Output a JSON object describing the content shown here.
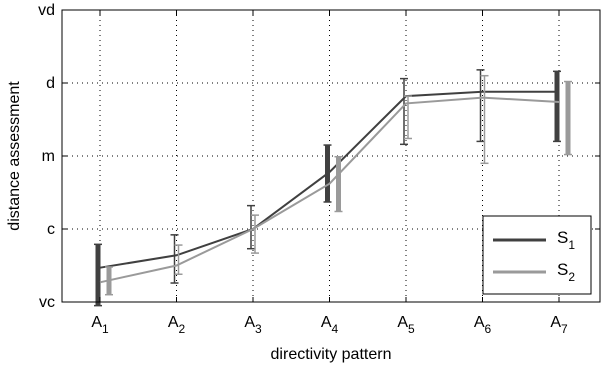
{
  "chart_data": {
    "type": "line",
    "title": "",
    "xlabel": "directivity pattern",
    "ylabel": "distance assessment",
    "categories": [
      {
        "base": "A",
        "sub": "1"
      },
      {
        "base": "A",
        "sub": "2"
      },
      {
        "base": "A",
        "sub": "3"
      },
      {
        "base": "A",
        "sub": "4"
      },
      {
        "base": "A",
        "sub": "5"
      },
      {
        "base": "A",
        "sub": "6"
      },
      {
        "base": "A",
        "sub": "7"
      }
    ],
    "y_ticks": [
      {
        "label": "vc",
        "value": 1
      },
      {
        "label": "c",
        "value": 2
      },
      {
        "label": "m",
        "value": 3
      },
      {
        "label": "d",
        "value": 4
      },
      {
        "label": "vd",
        "value": 5
      }
    ],
    "ylim": [
      1,
      5
    ],
    "grid": true,
    "legend_position": "bottom-right",
    "series": [
      {
        "name": "S",
        "name_sub": "1",
        "color": "#404040",
        "values": [
          1.47,
          1.64,
          2.0,
          2.78,
          3.82,
          3.88,
          3.88
        ],
        "error_low": [
          0.95,
          1.26,
          1.73,
          2.37,
          3.16,
          3.2,
          3.2
        ],
        "error_high": [
          1.79,
          1.92,
          2.32,
          3.15,
          4.06,
          4.18,
          4.16
        ],
        "thick_bars": [
          0,
          3,
          6
        ]
      },
      {
        "name": "S",
        "name_sub": "2",
        "color": "#9a9a9a",
        "values": [
          1.27,
          1.5,
          2.0,
          2.62,
          3.72,
          3.8,
          3.74
        ],
        "error_low": [
          1.1,
          1.38,
          1.67,
          2.24,
          3.24,
          2.9,
          3.02
        ],
        "error_high": [
          1.48,
          1.78,
          2.19,
          2.99,
          3.82,
          4.1,
          4.02
        ],
        "thick_bars": [
          0,
          3,
          6
        ]
      }
    ]
  }
}
